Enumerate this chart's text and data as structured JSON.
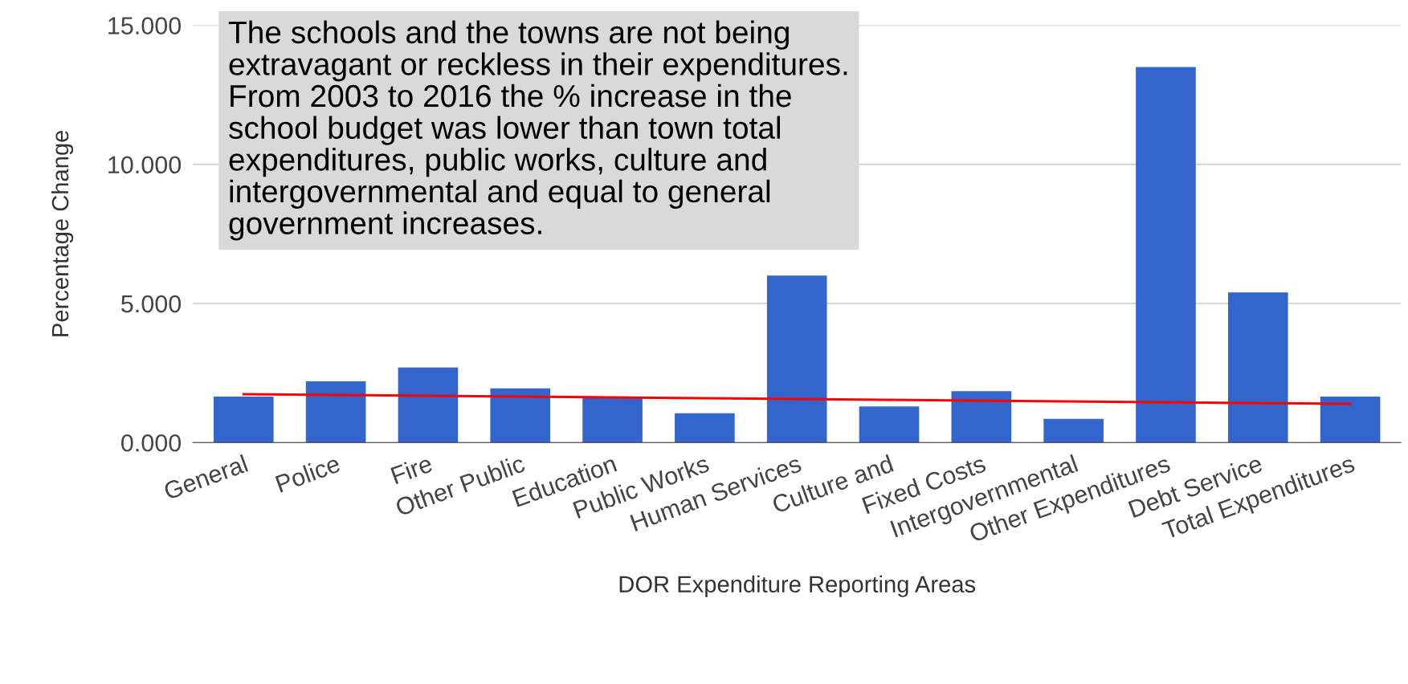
{
  "chart_data": {
    "type": "bar",
    "xlabel": "DOR Expenditure Reporting Areas",
    "ylabel": "Percentage Change",
    "categories": [
      "General",
      "Police",
      "Fire",
      "Other Public",
      "Education",
      "Public Works",
      "Human Services",
      "Culture and",
      "Fixed Costs",
      "Intergovernmental",
      "Other Expenditures",
      "Debt Service",
      "Total Expenditures"
    ],
    "series": [
      {
        "color": "#3366cc",
        "values": [
          1.65,
          2.2,
          2.7,
          1.95,
          1.65,
          1.05,
          6.0,
          1.3,
          1.85,
          0.85,
          13.5,
          5.4,
          1.65
        ]
      },
      {
        "type": "line",
        "color": "#ff0000",
        "x": [
          "General",
          "Total Expenditures"
        ],
        "values": [
          1.74,
          1.39
        ]
      }
    ],
    "ylim": [
      0,
      15
    ],
    "yticks": [
      {
        "value": 0,
        "label": "0.000"
      },
      {
        "value": 5,
        "label": "5.000"
      },
      {
        "value": 10,
        "label": "10.000"
      },
      {
        "value": 15,
        "label": "15.000"
      }
    ],
    "grid": "y",
    "legend": false,
    "annotations": [
      "The schools and the towns are not being\nextravagant or reckless in their expenditures.\nFrom 2003 to 2016 the % increase in the\nschool budget was lower than town total\nexpenditures, public works, culture and\nintergovernmental and equal to general\ngovernment increases."
    ]
  }
}
